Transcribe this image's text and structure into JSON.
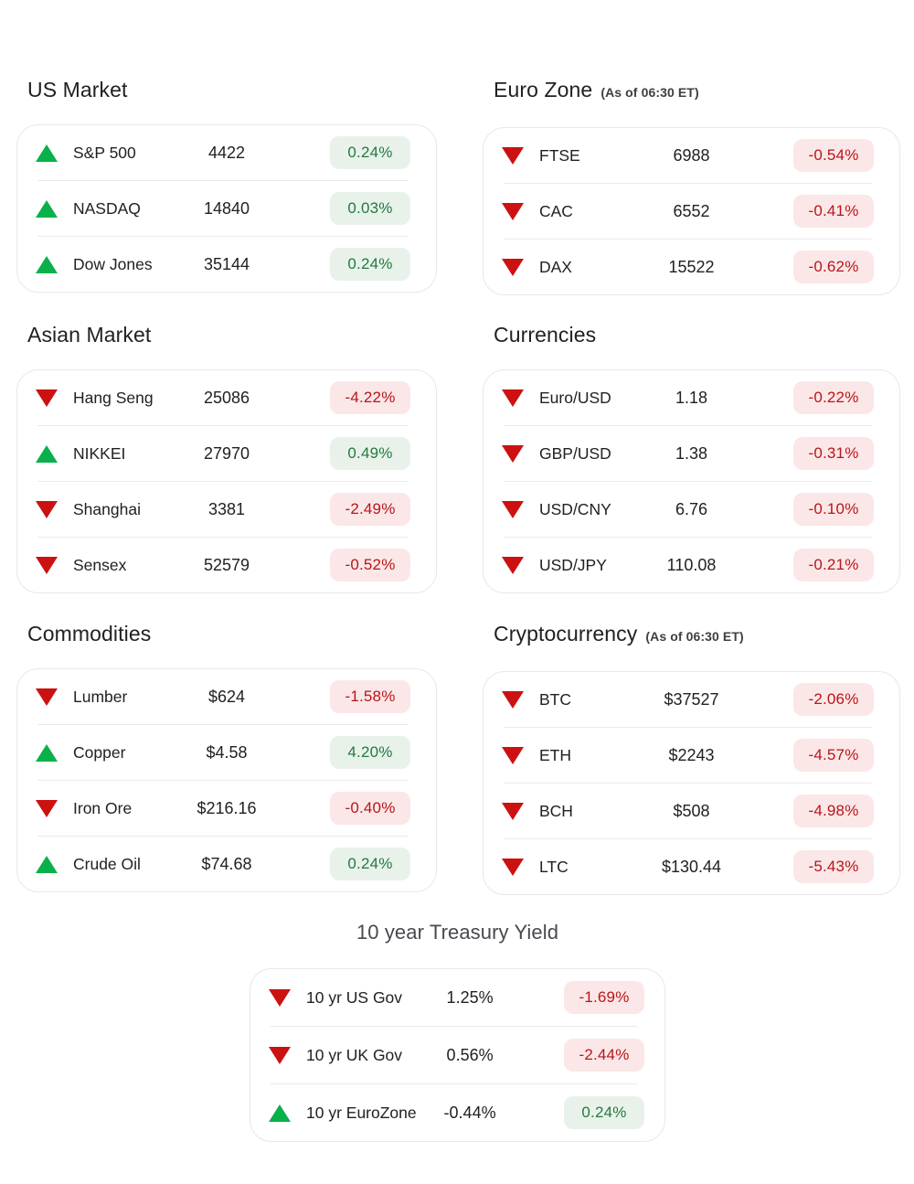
{
  "colors": {
    "background": "#ffffff",
    "up": "#0ab14a",
    "down": "#cc1111",
    "badge_pos_bg": "#e8f2ea",
    "badge_pos_text": "#237a3e",
    "badge_neg_bg": "#fbe7e7",
    "badge_neg_text": "#b8151a",
    "title": "#202124",
    "treasury_title": "#46494e",
    "subtitle": "#3c4043",
    "text": "#202124",
    "divider": "#e9eaec",
    "card_border": "#e8e8eb"
  },
  "sections": [
    {
      "id": "us-market",
      "title": "US Market",
      "subtitle": "",
      "rows": [
        {
          "direction": "up",
          "label": "S&P 500",
          "value": "4422",
          "change": "0.24%",
          "change_type": "positive"
        },
        {
          "direction": "up",
          "label": "NASDAQ",
          "value": "14840",
          "change": "0.03%",
          "change_type": "positive"
        },
        {
          "direction": "up",
          "label": "Dow Jones",
          "value": "35144",
          "change": "0.24%",
          "change_type": "positive"
        }
      ]
    },
    {
      "id": "euro-zone",
      "title": "Euro Zone",
      "subtitle": "(As of 06:30 ET)",
      "rows": [
        {
          "direction": "down",
          "label": "FTSE",
          "value": "6988",
          "change": "-0.54%",
          "change_type": "negative"
        },
        {
          "direction": "down",
          "label": "CAC",
          "value": "6552",
          "change": "-0.41%",
          "change_type": "negative"
        },
        {
          "direction": "down",
          "label": "DAX",
          "value": "15522",
          "change": "-0.62%",
          "change_type": "negative"
        }
      ]
    },
    {
      "id": "asian-market",
      "title": "Asian Market",
      "subtitle": "",
      "rows": [
        {
          "direction": "down",
          "label": "Hang Seng",
          "value": "25086",
          "change": "-4.22%",
          "change_type": "negative"
        },
        {
          "direction": "up",
          "label": "NIKKEI",
          "value": "27970",
          "change": "0.49%",
          "change_type": "positive"
        },
        {
          "direction": "down",
          "label": "Shanghai",
          "value": "3381",
          "change": "-2.49%",
          "change_type": "negative"
        },
        {
          "direction": "down",
          "label": "Sensex",
          "value": "52579",
          "change": "-0.52%",
          "change_type": "negative"
        }
      ]
    },
    {
      "id": "currencies",
      "title": "Currencies",
      "subtitle": "",
      "rows": [
        {
          "direction": "down",
          "label": "Euro/USD",
          "value": "1.18",
          "change": "-0.22%",
          "change_type": "negative"
        },
        {
          "direction": "down",
          "label": "GBP/USD",
          "value": "1.38",
          "change": "-0.31%",
          "change_type": "negative"
        },
        {
          "direction": "down",
          "label": "USD/CNY",
          "value": "6.76",
          "change": "-0.10%",
          "change_type": "negative"
        },
        {
          "direction": "down",
          "label": "USD/JPY",
          "value": "110.08",
          "change": "-0.21%",
          "change_type": "negative"
        }
      ]
    },
    {
      "id": "commodities",
      "title": "Commodities",
      "subtitle": "",
      "rows": [
        {
          "direction": "down",
          "label": "Lumber",
          "value": "$624",
          "change": "-1.58%",
          "change_type": "negative"
        },
        {
          "direction": "up",
          "label": "Copper",
          "value": "$4.58",
          "change": "4.20%",
          "change_type": "positive"
        },
        {
          "direction": "down",
          "label": "Iron Ore",
          "value": "$216.16",
          "change": "-0.40%",
          "change_type": "negative"
        },
        {
          "direction": "up",
          "label": "Crude Oil",
          "value": "$74.68",
          "change": "0.24%",
          "change_type": "positive"
        }
      ]
    },
    {
      "id": "cryptocurrency",
      "title": "Cryptocurrency",
      "subtitle": "(As of 06:30 ET)",
      "rows": [
        {
          "direction": "down",
          "label": "BTC",
          "value": "$37527",
          "change": "-2.06%",
          "change_type": "negative"
        },
        {
          "direction": "down",
          "label": "ETH",
          "value": "$2243",
          "change": "-4.57%",
          "change_type": "negative"
        },
        {
          "direction": "down",
          "label": "BCH",
          "value": "$508",
          "change": "-4.98%",
          "change_type": "negative"
        },
        {
          "direction": "down",
          "label": "LTC",
          "value": "$130.44",
          "change": "-5.43%",
          "change_type": "negative"
        }
      ]
    },
    {
      "id": "treasury-yield",
      "title": "10 year Treasury Yield",
      "subtitle": "",
      "rows": [
        {
          "direction": "down",
          "label": "10 yr US Gov",
          "value": "1.25%",
          "change": "-1.69%",
          "change_type": "negative"
        },
        {
          "direction": "down",
          "label": "10 yr UK Gov",
          "value": "0.56%",
          "change": "-2.44%",
          "change_type": "negative"
        },
        {
          "direction": "up",
          "label": "10 yr EuroZone",
          "value": "-0.44%",
          "change": "0.24%",
          "change_type": "positive"
        }
      ]
    }
  ]
}
